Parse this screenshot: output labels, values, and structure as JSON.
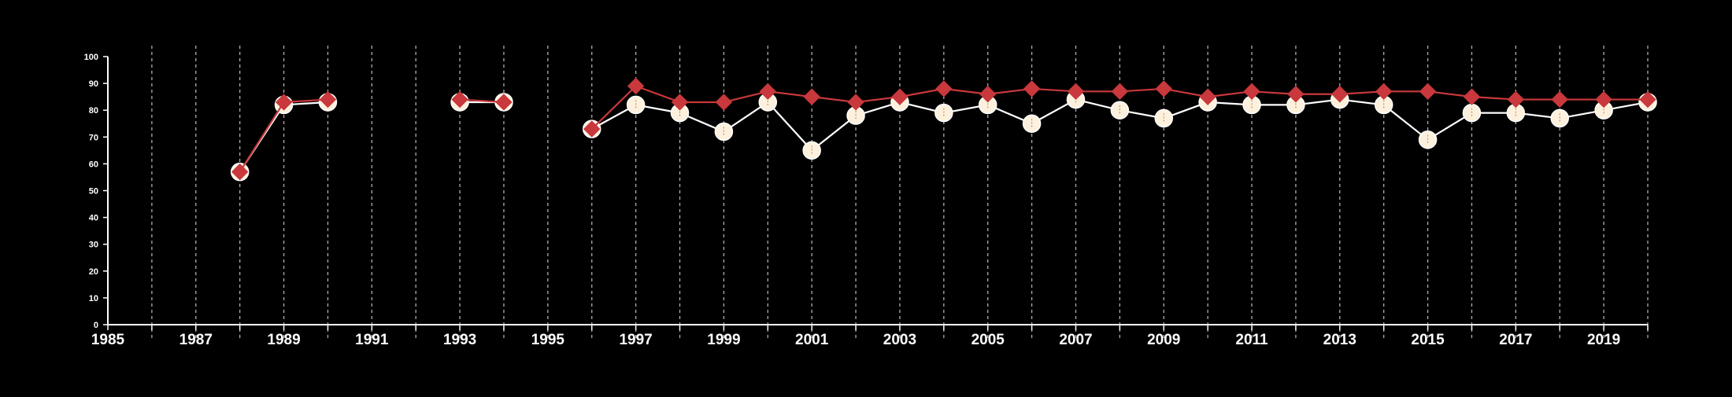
{
  "chart_data": {
    "type": "line",
    "background": "#000000",
    "grid": {
      "vertical": true,
      "horizontal": false,
      "style": "dashed",
      "color": "#cccccc"
    },
    "x": {
      "min": 1985,
      "max": 2020,
      "tick_values": [
        1985,
        1987,
        1989,
        1991,
        1993,
        1995,
        1997,
        1999,
        2001,
        2003,
        2005,
        2007,
        2009,
        2011,
        2013,
        2015,
        2017,
        2019
      ],
      "tick_labels": [
        "1985",
        "1987",
        "1989",
        "1991",
        "1993",
        "1995",
        "1997",
        "1999",
        "2001",
        "2003",
        "2005",
        "2007",
        "2009",
        "2011",
        "2013",
        "2015",
        "2017",
        "2019"
      ]
    },
    "y": {
      "min": 0,
      "max": 100,
      "tick_values": [
        0,
        10,
        20,
        30,
        40,
        50,
        60,
        70,
        80,
        90,
        100
      ],
      "tick_labels": [
        "0",
        "10",
        "20",
        "30",
        "40",
        "50",
        "60",
        "70",
        "80",
        "90",
        "100"
      ]
    },
    "xlabel": "",
    "ylabel": "",
    "title": "",
    "series": [
      {
        "color": "#fdf0dc",
        "line_color": "#ffffff",
        "marker": "circle",
        "x": [
          1988,
          1989,
          1990,
          1993,
          1994,
          1996,
          1997,
          1998,
          1999,
          2000,
          2001,
          2002,
          2003,
          2004,
          2005,
          2006,
          2007,
          2008,
          2009,
          2010,
          2011,
          2012,
          2013,
          2014,
          2015,
          2016,
          2017,
          2018,
          2019,
          2020
        ],
        "values": [
          57,
          82,
          83,
          83,
          83,
          73,
          82,
          79,
          72,
          83,
          65,
          78,
          83,
          79,
          82,
          75,
          84,
          80,
          77,
          83,
          82,
          82,
          84,
          82,
          69,
          79,
          79,
          77,
          80,
          83
        ]
      },
      {
        "color": "#c8383c",
        "line_color": "#c8383c",
        "marker": "diamond",
        "x": [
          1988,
          1989,
          1990,
          1993,
          1994,
          1996,
          1997,
          1998,
          1999,
          2000,
          2001,
          2002,
          2003,
          2004,
          2005,
          2006,
          2007,
          2008,
          2009,
          2010,
          2011,
          2012,
          2013,
          2014,
          2015,
          2016,
          2017,
          2018,
          2019,
          2020
        ],
        "values": [
          57,
          83,
          84,
          84,
          83,
          73,
          89,
          83,
          83,
          87,
          85,
          83,
          85,
          88,
          86,
          88,
          87,
          87,
          88,
          85,
          87,
          86,
          86,
          87,
          87,
          85,
          84,
          84,
          84,
          84
        ]
      }
    ]
  }
}
